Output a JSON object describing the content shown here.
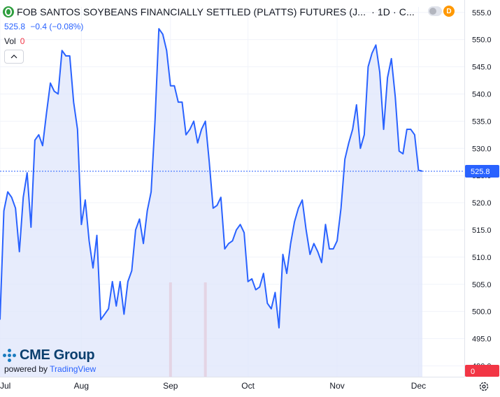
{
  "header": {
    "title": "FOB SANTOS SOYBEANS FINANCIALLY SETTLED (PLATTS) FUTURES (J...",
    "interval": "· 1D · C...",
    "price": "525.8",
    "change": "−0.4 (−0.08%)",
    "volume_label": "Vol",
    "volume_value": "0"
  },
  "badges": {
    "d": "D"
  },
  "branding": {
    "logo": "CME Group",
    "powered_by": "powered by",
    "tradingview": "TradingView"
  },
  "colors": {
    "line": "#2962ff",
    "fill": "#dfe6fb",
    "volume": "#f3a0a0",
    "last_price": "#2962ff"
  },
  "icons": [
    "symbol-icon",
    "toggle-icon",
    "collapse-icon",
    "gear-icon"
  ],
  "chart_data": {
    "type": "area",
    "title": "FOB SANTOS SOYBEANS FINANCIALLY SETTLED (PLATTS) FUTURES (J...",
    "xlabel": "",
    "ylabel": "",
    "ylim": [
      488,
      556
    ],
    "y_ticks": [
      490,
      495,
      500,
      505,
      510,
      515,
      520,
      525,
      530,
      535,
      540,
      545,
      550,
      555
    ],
    "x_ticks": [
      {
        "label": "Jul",
        "index": 0
      },
      {
        "label": "Aug",
        "index": 21
      },
      {
        "label": "Sep",
        "index": 44
      },
      {
        "label": "Oct",
        "index": 64
      },
      {
        "label": "Nov",
        "index": 87
      },
      {
        "label": "Dec",
        "index": 108
      }
    ],
    "last_value": 525.8,
    "last_label": "525.8",
    "grid": true,
    "series": [
      {
        "values": [
          498.5,
          518.5,
          522,
          521,
          519,
          511,
          521,
          525.5,
          515.5,
          531.5,
          532.5,
          530.5,
          536.5,
          542,
          540.5,
          540,
          548,
          547,
          547,
          538.5,
          533.5,
          516,
          520.5,
          513,
          508,
          514,
          498.5,
          499.5,
          500.5,
          505.5,
          501,
          505.5,
          499.5,
          505.5,
          507.5,
          515,
          517,
          512.5,
          518.5,
          522,
          535,
          552,
          551,
          548,
          541.5,
          541.5,
          538.5,
          538.5,
          532.5,
          533.5,
          535,
          531,
          533.5,
          535,
          527.5,
          519,
          519.5,
          521,
          511.5,
          512.5,
          513,
          515,
          516,
          514.5,
          505.5,
          506,
          504,
          504.5,
          507,
          501.5,
          500.5,
          503.5,
          497,
          510.5,
          507,
          512.5,
          516.5,
          519,
          520.5,
          515,
          510.5,
          512.5,
          511,
          509,
          516,
          511.5,
          511.5,
          513,
          519,
          528,
          531,
          533.5,
          538,
          530,
          532.5,
          545,
          547.5,
          549,
          544,
          533.5,
          543,
          546.5,
          539.5,
          529.5,
          529,
          533.5,
          533.5,
          532.5,
          526,
          525.8
        ]
      }
    ],
    "volume": {
      "values": [
        {
          "index": 44,
          "value": 0
        },
        {
          "index": 53,
          "value": 0
        }
      ]
    }
  }
}
